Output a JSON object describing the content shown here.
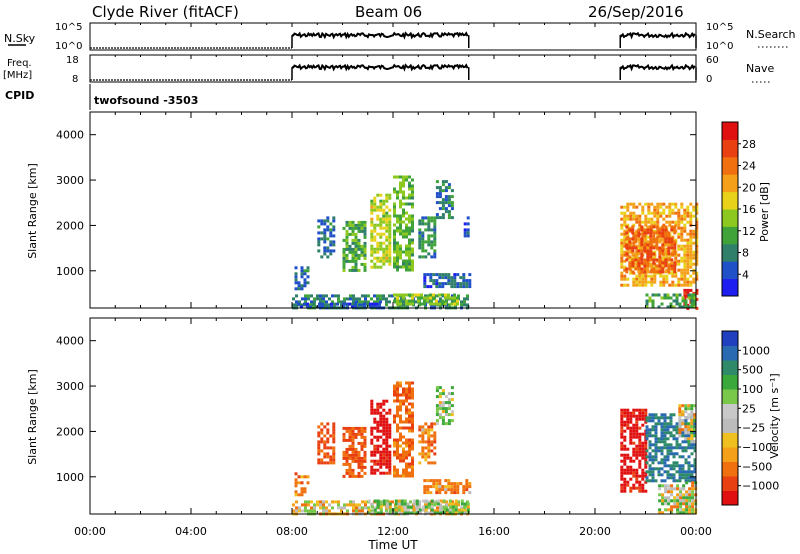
{
  "header": {
    "station": "Clyde River (fitACF)",
    "beam": "Beam 06",
    "date": "26/Sep/2016"
  },
  "panel_labels": {
    "nsky": "N.Sky",
    "nsearch": "N.Search",
    "freq_line1": "Freq.",
    "freq_line2": "[MHz]",
    "nave": "Nave",
    "cpid": "CPID",
    "cpid_value": "twofsound -3503"
  },
  "chart_data": [
    {
      "type": "line",
      "title": "N.Sky / N.Search",
      "ylabel_left": "N.Sky",
      "ylabel_right": "N.Search",
      "left_ticks": [
        "10^5",
        "10^0"
      ],
      "right_ticks": [
        "10^5",
        "10^0"
      ],
      "x_ticks": [
        "00:00",
        "04:00",
        "08:00",
        "12:00",
        "16:00",
        "20:00",
        "00:00"
      ],
      "xlim_hours": [
        0,
        24
      ],
      "segments": [
        {
          "from": 0.0,
          "to": 8.0,
          "level": "low"
        },
        {
          "from": 8.0,
          "to": 15.0,
          "level": "high"
        },
        {
          "from": 21.0,
          "to": 24.0,
          "level": "high"
        }
      ]
    },
    {
      "type": "line",
      "title": "Freq. / Nave",
      "ylabel_left": "Freq. [MHz]",
      "ylabel_right": "Nave",
      "left_ticks": [
        18,
        8
      ],
      "right_ticks": [
        60,
        0
      ],
      "segments": [
        {
          "from": 0.0,
          "to": 8.0,
          "level": "low"
        },
        {
          "from": 8.0,
          "to": 15.0,
          "level": "high"
        },
        {
          "from": 21.0,
          "to": 24.0,
          "level": "high"
        }
      ]
    },
    {
      "type": "heatmap",
      "parameter": "Power",
      "ylabel": "Slant Range [km]",
      "y_ticks": [
        1000,
        2000,
        3000,
        4000
      ],
      "ylim_km": [
        180,
        4500
      ],
      "colorbar_label": "Power [dB]",
      "colorbar_ticks": [
        4,
        8,
        12,
        16,
        20,
        24,
        28
      ],
      "colorbar_colors": [
        "#1e1ef0",
        "#2050c8",
        "#2f7f6a",
        "#3fa33a",
        "#8cc820",
        "#e8d21a",
        "#f4a018",
        "#f07010",
        "#e84010",
        "#e01010"
      ],
      "echo_regions": [
        {
          "t0": 8.0,
          "t1": 15.0,
          "r0": 180,
          "r1": 480,
          "value": 9
        },
        {
          "t0": 8.2,
          "t1": 11.5,
          "r0": 180,
          "r1": 300,
          "value": 6
        },
        {
          "t0": 12.0,
          "t1": 14.5,
          "r0": 250,
          "r1": 500,
          "value": 14
        },
        {
          "t0": 13.2,
          "t1": 15.0,
          "r0": 650,
          "r1": 950,
          "value": 7
        },
        {
          "t0": 8.1,
          "t1": 8.6,
          "r0": 600,
          "r1": 1100,
          "value": 8
        },
        {
          "t0": 9.0,
          "t1": 9.6,
          "r0": 1300,
          "r1": 2200,
          "value": 8
        },
        {
          "t0": 10.0,
          "t1": 10.9,
          "r0": 1000,
          "r1": 2100,
          "value": 12
        },
        {
          "t0": 11.1,
          "t1": 11.9,
          "r0": 1100,
          "r1": 2700,
          "value": 16
        },
        {
          "t0": 12.0,
          "t1": 12.8,
          "r0": 1000,
          "r1": 3100,
          "value": 13
        },
        {
          "t0": 13.0,
          "t1": 13.7,
          "r0": 1300,
          "r1": 2200,
          "value": 10
        },
        {
          "t0": 13.7,
          "t1": 14.3,
          "r0": 2200,
          "r1": 3000,
          "value": 9
        },
        {
          "t0": 14.8,
          "t1": 15.0,
          "r0": 1800,
          "r1": 2200,
          "value": 6
        },
        {
          "t0": 21.0,
          "t1": 24.0,
          "r0": 700,
          "r1": 2500,
          "value": 20
        },
        {
          "t0": 21.2,
          "t1": 23.2,
          "r0": 1000,
          "r1": 2000,
          "value": 24
        },
        {
          "t0": 23.5,
          "t1": 24.0,
          "r0": 180,
          "r1": 600,
          "value": 28
        },
        {
          "t0": 22.0,
          "t1": 24.0,
          "r0": 180,
          "r1": 500,
          "value": 12
        }
      ]
    },
    {
      "type": "heatmap",
      "parameter": "Velocity",
      "ylabel": "Slant Range [km]",
      "y_ticks": [
        1000,
        2000,
        3000,
        4000
      ],
      "ylim_km": [
        180,
        4500
      ],
      "xlabel": "Time UT",
      "x_ticks": [
        "00:00",
        "04:00",
        "08:00",
        "12:00",
        "16:00",
        "20:00",
        "00:00"
      ],
      "colorbar_label": "Velocity [m s⁻¹]",
      "colorbar_ticks": [
        "1000",
        "500",
        "100",
        "25",
        "−25",
        "−100",
        "−500",
        "−1000"
      ],
      "colorbar_colors": [
        "#2040c0",
        "#2a6ab0",
        "#2f8a6a",
        "#3aa83a",
        "#7ac84a",
        "#c8c8c8",
        "#bcbcbc",
        "#f0c020",
        "#f4a018",
        "#f07010",
        "#e84010",
        "#e01010"
      ],
      "echo_regions": [
        {
          "t0": 8.0,
          "t1": 15.0,
          "r0": 180,
          "r1": 480,
          "value": -30
        },
        {
          "t0": 11.0,
          "t1": 15.0,
          "r0": 200,
          "r1": 500,
          "value": 60
        },
        {
          "t0": 13.2,
          "t1": 15.0,
          "r0": 650,
          "r1": 950,
          "value": -150
        },
        {
          "t0": 8.1,
          "t1": 8.6,
          "r0": 600,
          "r1": 1100,
          "value": -150
        },
        {
          "t0": 9.0,
          "t1": 9.6,
          "r0": 1300,
          "r1": 2200,
          "value": -300
        },
        {
          "t0": 10.0,
          "t1": 10.9,
          "r0": 1000,
          "r1": 2100,
          "value": -250
        },
        {
          "t0": 11.1,
          "t1": 11.9,
          "r0": 1100,
          "r1": 2700,
          "value": -600
        },
        {
          "t0": 12.0,
          "t1": 12.8,
          "r0": 1000,
          "r1": 3100,
          "value": -200
        },
        {
          "t0": 13.0,
          "t1": 13.7,
          "r0": 1300,
          "r1": 2200,
          "value": -150
        },
        {
          "t0": 13.7,
          "t1": 14.3,
          "r0": 2200,
          "r1": 3000,
          "value": 60
        },
        {
          "t0": 21.0,
          "t1": 22.0,
          "r0": 700,
          "r1": 2500,
          "value": -600
        },
        {
          "t0": 22.0,
          "t1": 24.0,
          "r0": 900,
          "r1": 2400,
          "value": 500
        },
        {
          "t0": 23.3,
          "t1": 24.0,
          "r0": 1800,
          "r1": 2600,
          "value": 0
        },
        {
          "t0": 22.5,
          "t1": 24.0,
          "r0": 180,
          "r1": 900,
          "value": 0
        }
      ]
    }
  ],
  "x_axis": {
    "label": "Time UT",
    "ticks": [
      "00:00",
      "04:00",
      "08:00",
      "12:00",
      "16:00",
      "20:00",
      "00:00"
    ]
  }
}
